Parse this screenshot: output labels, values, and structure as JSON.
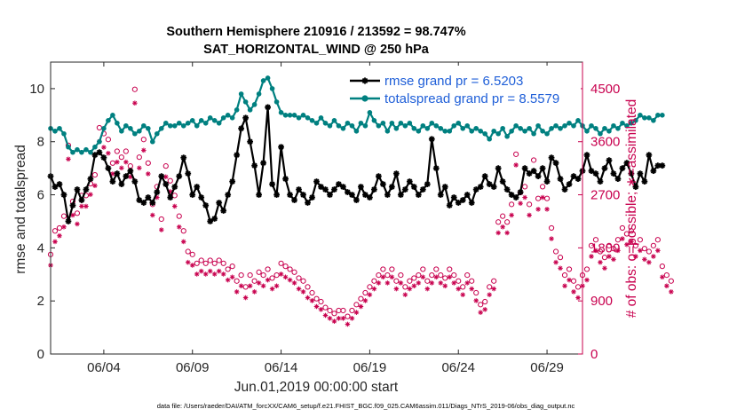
{
  "chart_data": {
    "type": "line",
    "title": "Southern Hemisphere 210916 / 213592 = 98.747%",
    "subtitle": "SAT_HORIZONTAL_WIND @ 250 hPa",
    "xlabel": "Jun.01,2019 00:00:00 start",
    "ylabel_left": "rmse and totalspread",
    "ylabel_right": "# of obs: o=possible; ∗=assimilated",
    "footer": "data file: /Users/raeder/DAI/ATM_forcXX/CAM6_setup/f.e21.FHIST_BGC.f09_025.CAM6assim.011/Diags_NTrS_2019-06/obs_diag_output.nc",
    "xlim": [
      1,
      31
    ],
    "ylim_left": [
      0,
      11
    ],
    "ylim_right": [
      0,
      4950
    ],
    "x_ticks": [
      {
        "x": 4,
        "label": "06/04"
      },
      {
        "x": 9,
        "label": "06/09"
      },
      {
        "x": 14,
        "label": "06/14"
      },
      {
        "x": 19,
        "label": "06/19"
      },
      {
        "x": 24,
        "label": "06/24"
      },
      {
        "x": 29,
        "label": "06/29"
      }
    ],
    "y_ticks_left": [
      0,
      2,
      4,
      6,
      8,
      10
    ],
    "y_ticks_right": [
      0,
      900,
      1800,
      2700,
      3600,
      4500
    ],
    "grid": false,
    "legend": {
      "placement": "top-right",
      "entries": [
        {
          "label": "rmse grand pr = 6.5203",
          "color": "#000000"
        },
        {
          "label": "totalspread grand pr = 8.5579",
          "color": "#008080"
        }
      ]
    },
    "colors": {
      "rmse": "#000000",
      "totalspread": "#008080",
      "obs": "#c8004e"
    },
    "series": [
      {
        "name": "rmse grand pr = 6.5203",
        "axis": "left",
        "x_start": 1,
        "x_step": 0.25,
        "values": [
          6.7,
          6.3,
          6.4,
          6.0,
          5.0,
          5.6,
          6.2,
          5.8,
          6.2,
          6.6,
          7.5,
          7.6,
          7.4,
          7.0,
          6.5,
          6.8,
          6.4,
          6.7,
          6.9,
          6.5,
          5.8,
          5.7,
          5.9,
          5.7,
          6.1,
          6.7,
          6.4,
          5.9,
          6.3,
          6.7,
          7.4,
          6.8,
          6.0,
          6.3,
          5.9,
          5.6,
          5.0,
          5.1,
          5.7,
          5.4,
          6.0,
          6.5,
          7.5,
          8.5,
          8.9,
          8.0,
          7.1,
          6.0,
          7.2,
          9.3,
          6.4,
          6.0,
          7.8,
          6.6,
          6.0,
          5.8,
          6.2,
          6.0,
          5.7,
          5.9,
          6.5,
          6.3,
          6.2,
          6.0,
          6.2,
          6.4,
          6.3,
          6.1,
          6.0,
          5.8,
          6.3,
          6.0,
          5.9,
          6.2,
          6.7,
          6.4,
          6.0,
          6.3,
          6.8,
          6.0,
          6.2,
          6.5,
          6.3,
          6.0,
          6.2,
          6.4,
          8.1,
          7.0,
          6.0,
          6.3,
          5.6,
          5.9,
          5.7,
          5.8,
          6.0,
          5.7,
          6.2,
          6.3,
          6.7,
          6.4,
          6.3,
          7.0,
          6.5,
          6.2,
          6.0,
          5.9,
          6.1,
          7.0,
          6.8,
          6.9,
          6.7,
          7.0,
          6.5,
          7.4,
          7.2,
          6.6,
          6.2,
          6.4,
          6.7,
          6.6,
          6.9,
          7.5,
          6.9,
          6.8,
          6.5,
          7.0,
          7.3,
          6.8,
          6.6,
          7.0,
          7.2,
          6.8,
          6.3,
          6.8,
          6.5,
          7.5,
          6.9,
          7.1,
          7.1
        ]
      },
      {
        "name": "totalspread grand pr = 8.5579",
        "axis": "left",
        "x_start": 1,
        "x_step": 0.25,
        "values": [
          8.5,
          8.4,
          8.5,
          8.3,
          7.8,
          7.6,
          7.7,
          7.6,
          7.7,
          7.6,
          7.8,
          8.0,
          8.5,
          8.8,
          9.0,
          8.7,
          8.4,
          8.6,
          8.5,
          8.3,
          8.4,
          8.6,
          8.5,
          8.0,
          8.3,
          8.5,
          8.7,
          8.6,
          8.6,
          8.7,
          8.6,
          8.7,
          8.8,
          8.6,
          8.8,
          8.7,
          8.9,
          8.8,
          8.7,
          8.9,
          9.0,
          8.9,
          9.2,
          9.8,
          9.5,
          9.2,
          9.4,
          9.8,
          10.3,
          10.4,
          10.0,
          9.5,
          9.1,
          9.0,
          9.0,
          9.0,
          8.9,
          9.0,
          8.9,
          8.8,
          8.7,
          8.9,
          8.7,
          8.6,
          8.8,
          8.6,
          8.5,
          8.7,
          8.6,
          8.4,
          8.7,
          8.6,
          9.1,
          8.8,
          8.6,
          8.7,
          8.4,
          8.7,
          8.5,
          8.7,
          8.6,
          8.7,
          8.5,
          8.4,
          8.6,
          8.5,
          8.7,
          8.6,
          8.5,
          8.4,
          8.4,
          8.6,
          8.7,
          8.5,
          8.6,
          8.4,
          8.5,
          8.4,
          8.3,
          8.1,
          8.4,
          8.3,
          8.5,
          8.2,
          8.4,
          8.6,
          8.5,
          8.4,
          8.5,
          8.3,
          8.6,
          8.4,
          8.3,
          8.5,
          8.6,
          8.5,
          8.6,
          8.7,
          8.6,
          8.8,
          8.6,
          8.4,
          8.6,
          8.5,
          8.3,
          8.5,
          8.4,
          8.6,
          8.5,
          8.7,
          8.6,
          8.7,
          8.8,
          9.0,
          8.9,
          8.9,
          8.8,
          9.0,
          9.0
        ]
      },
      {
        "name": "possible",
        "axis": "right",
        "x_start": 1,
        "x_step": 0.25,
        "values": [
          1650,
          2050,
          2100,
          2300,
          3500,
          2550,
          2350,
          2650,
          2650,
          2850,
          3000,
          3800,
          3700,
          3600,
          3200,
          3400,
          3300,
          3400,
          3150,
          4450,
          3300,
          3600,
          3200,
          2500,
          2800,
          2250,
          3150,
          2900,
          2650,
          2300,
          2050,
          1700,
          1650,
          1500,
          1550,
          1500,
          1550,
          1500,
          1550,
          1500,
          1400,
          1450,
          1200,
          1300,
          1100,
          1300,
          1200,
          1350,
          1300,
          1400,
          1250,
          1300,
          1500,
          1450,
          1400,
          1350,
          1250,
          1200,
          1100,
          1000,
          900,
          850,
          750,
          700,
          650,
          700,
          700,
          600,
          700,
          800,
          900,
          1000,
          1100,
          1200,
          1300,
          1400,
          1300,
          1400,
          1200,
          1300,
          1100,
          1200,
          1250,
          1300,
          1400,
          1200,
          1300,
          1400,
          1300,
          1250,
          1400,
          1300,
          1200,
          1100,
          1300,
          1200,
          1000,
          800,
          850,
          1100,
          1200,
          2200,
          2300,
          2200,
          2500,
          3350,
          2700,
          2800,
          2500,
          3250,
          2600,
          2800,
          2600,
          2100,
          1700,
          1600,
          1300,
          1400,
          1200,
          1100,
          1300,
          1400,
          1800,
          1900,
          1700,
          1600,
          1800,
          1750,
          1900,
          2100,
          2000,
          2050,
          1800,
          1900,
          1750,
          1700,
          1800,
          1900,
          1450,
          1300,
          1200
        ]
      },
      {
        "name": "assimilated",
        "axis": "right",
        "x_start": 1,
        "x_step": 0.25,
        "values": [
          1550,
          1950,
          2050,
          2200,
          3350,
          2400,
          2250,
          2550,
          2550,
          2750,
          2900,
          3650,
          3550,
          3450,
          3100,
          3300,
          3200,
          3300,
          3050,
          4300,
          3200,
          3500,
          3100,
          2400,
          2700,
          2150,
          3050,
          2800,
          2550,
          2200,
          1950,
          1600,
          1550,
          1400,
          1450,
          1400,
          1450,
          1400,
          1450,
          1400,
          1300,
          1350,
          1100,
          1200,
          1000,
          1200,
          1100,
          1250,
          1200,
          1300,
          1150,
          1200,
          1400,
          1350,
          1300,
          1250,
          1150,
          1100,
          1000,
          950,
          850,
          800,
          700,
          650,
          600,
          650,
          650,
          550,
          650,
          750,
          850,
          950,
          1050,
          1150,
          1250,
          1350,
          1250,
          1350,
          1150,
          1250,
          1050,
          1150,
          1200,
          1250,
          1350,
          1150,
          1250,
          1350,
          1250,
          1200,
          1350,
          1250,
          1150,
          1050,
          1250,
          1150,
          950,
          750,
          800,
          1050,
          1150,
          2100,
          2200,
          2100,
          2400,
          3250,
          2600,
          2700,
          2400,
          3150,
          2500,
          2700,
          2500,
          2000,
          1600,
          1500,
          1200,
          1300,
          1100,
          1000,
          1200,
          1300,
          1700,
          1800,
          1600,
          1500,
          1700,
          1650,
          1800,
          2000,
          1900,
          1950,
          1700,
          1800,
          1650,
          1600,
          1700,
          1800,
          1350,
          1200,
          1100
        ]
      }
    ]
  }
}
